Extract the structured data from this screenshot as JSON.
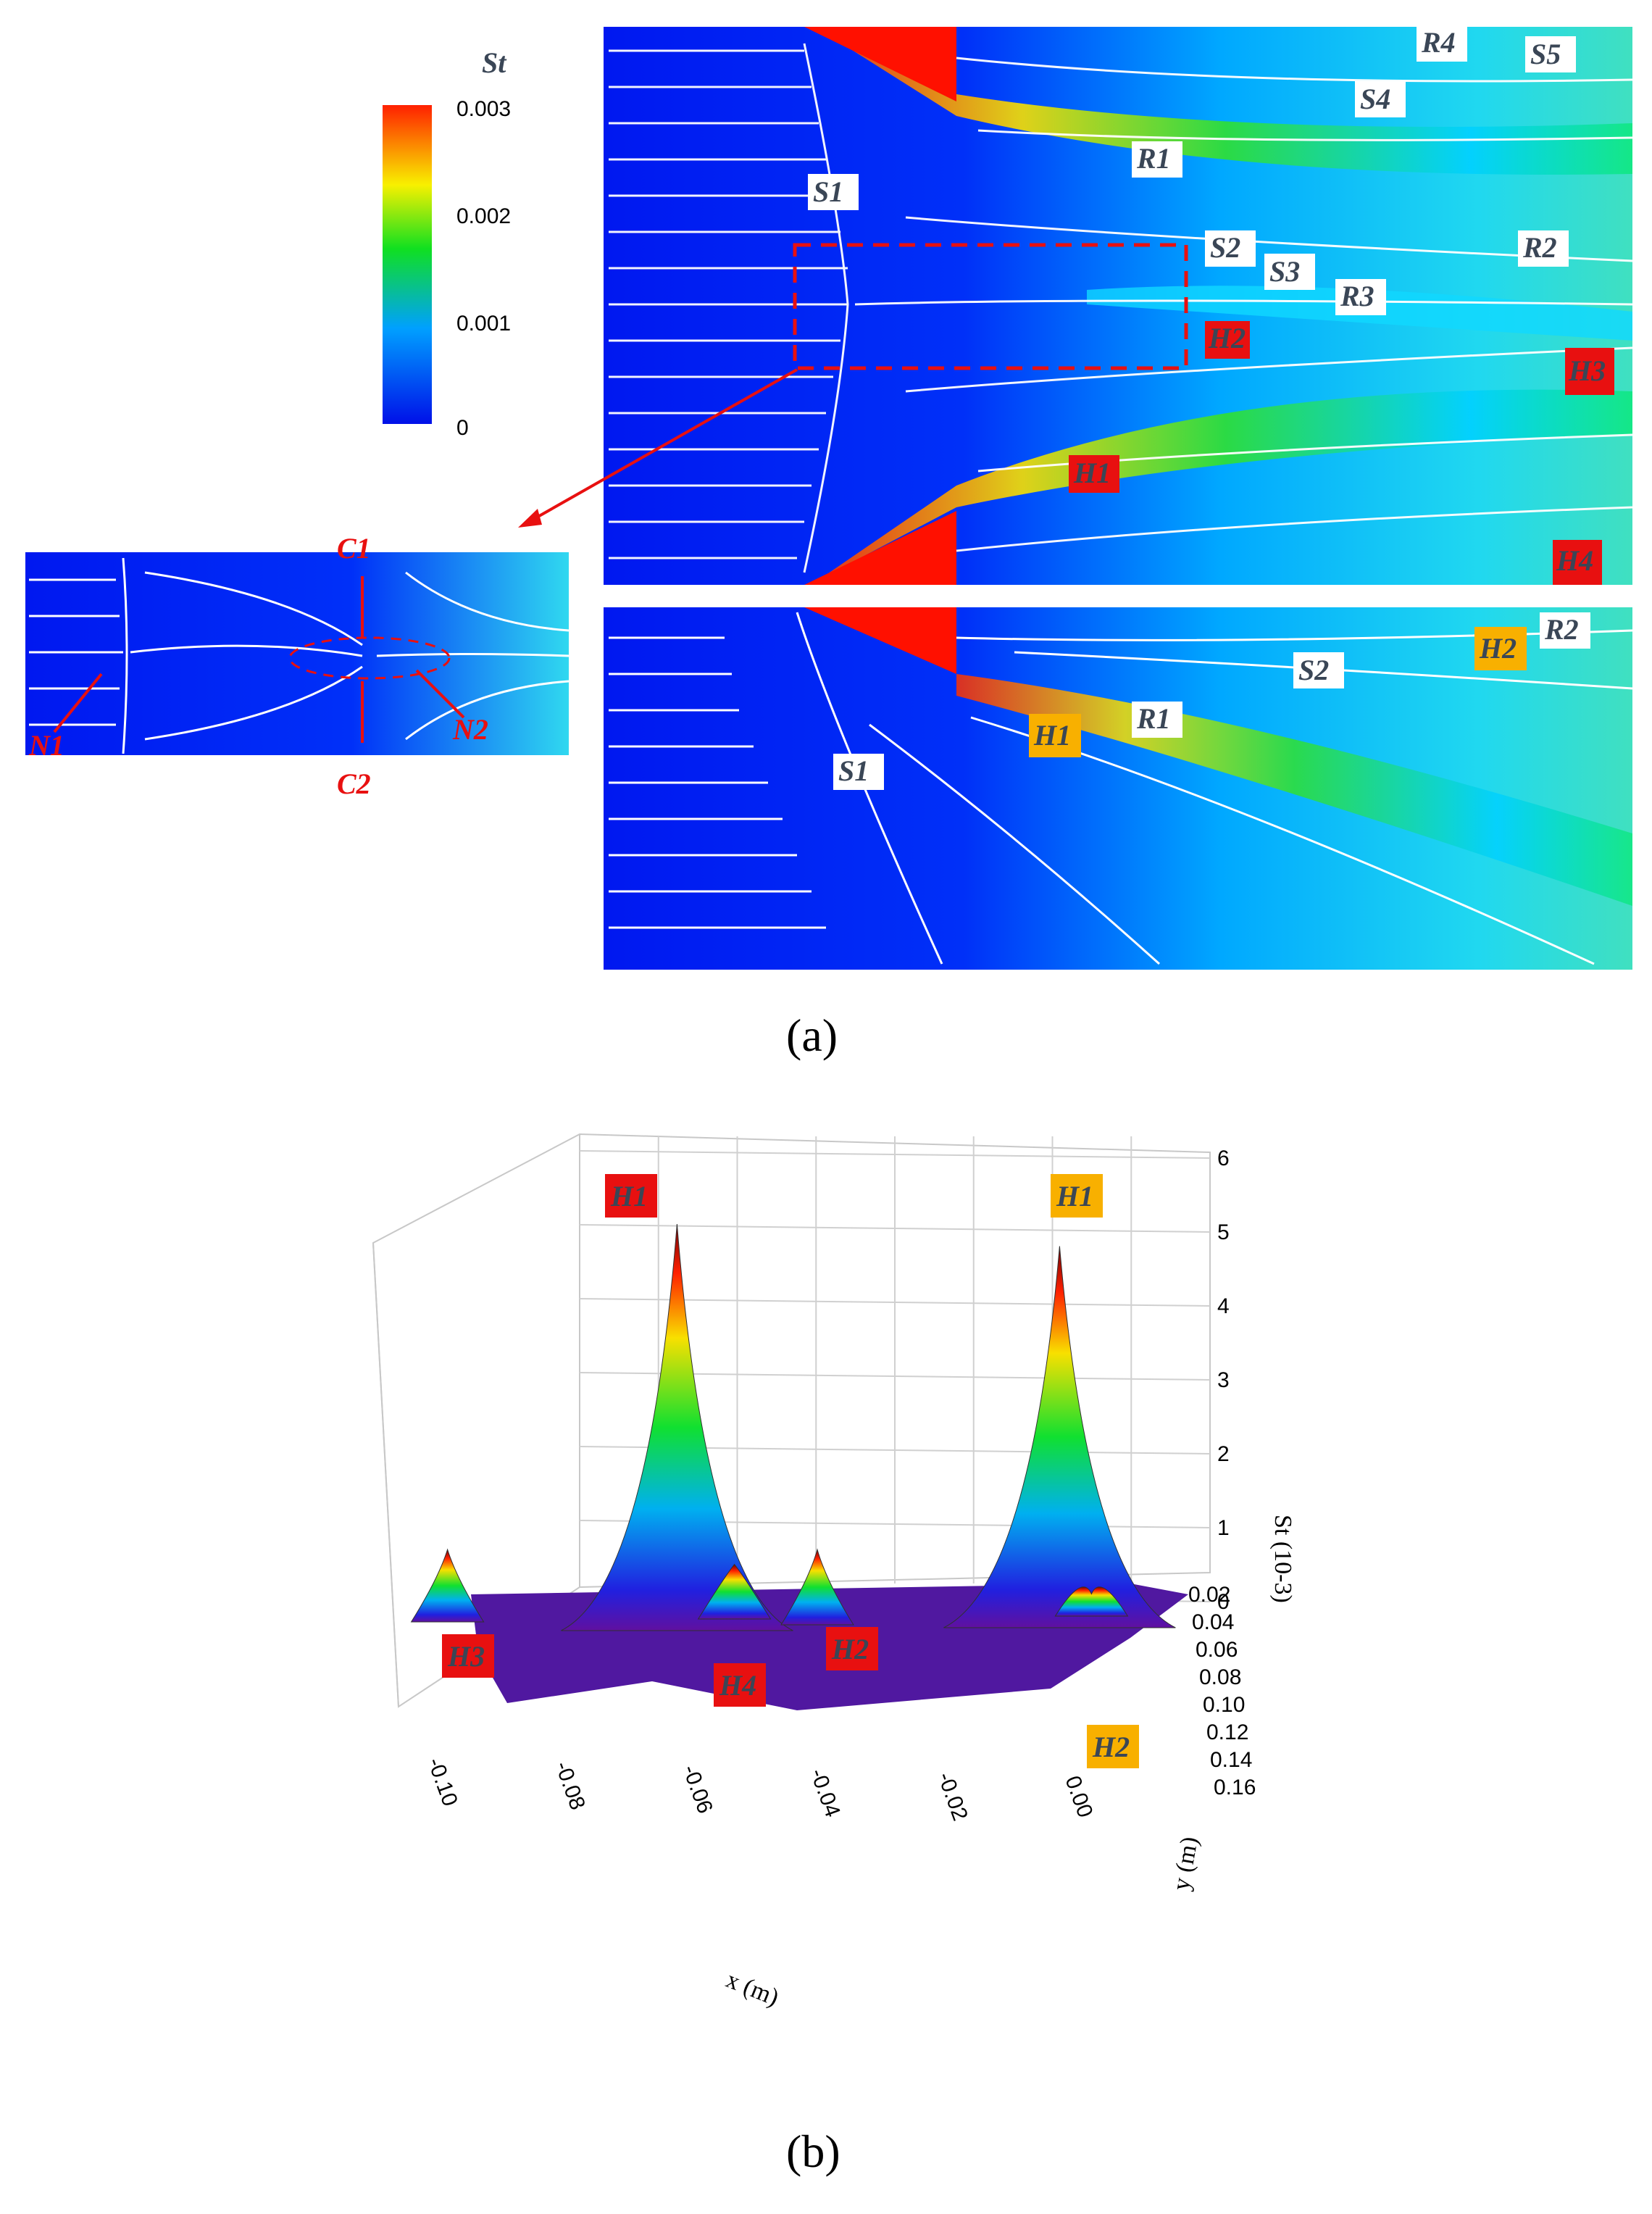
{
  "panel_a": {
    "label": "(a)",
    "colorbar": {
      "title": "St",
      "ticks": [
        "0.003",
        "0.002",
        "0.001",
        "0"
      ],
      "colors": [
        "#0010e8",
        "#00c8ff",
        "#10e020",
        "#f8f000",
        "#ff2000"
      ]
    },
    "top_labels": [
      "R4",
      "S5",
      "S4",
      "R1",
      "S1",
      "S2",
      "S3",
      "R3",
      "R2",
      "H1",
      "H2",
      "H3",
      "H4"
    ],
    "inset_labels": [
      "C1",
      "C2",
      "N1",
      "N2"
    ],
    "bottom_labels": [
      "H2",
      "R2",
      "S2",
      "H1",
      "R1",
      "S1"
    ]
  },
  "panel_b": {
    "label": "(b)",
    "chart_data": {
      "type": "surface",
      "zlabel": "St (10-3)",
      "xlabel": "x (m)",
      "ylabel": "y (m)",
      "z_ticks": [
        "0",
        "1",
        "2",
        "3",
        "4",
        "5",
        "6"
      ],
      "x_ticks": [
        "-0.10",
        "-0.08",
        "-0.06",
        "-0.04",
        "-0.02",
        "0.00"
      ],
      "y_ticks": [
        "0.02",
        "0.04",
        "0.06",
        "0.08",
        "0.10",
        "0.12",
        "0.14",
        "0.16"
      ],
      "zlim": [
        0,
        6
      ],
      "peaks": [
        {
          "label": "H1",
          "x": -0.062,
          "z": 5.5,
          "tag_color": "#e81010"
        },
        {
          "label": "H1",
          "x": -0.002,
          "z": 5.2,
          "tag_color": "#f8b000"
        },
        {
          "label": "H2",
          "x": -0.04,
          "z": 0.9,
          "tag_color": "#e81010"
        },
        {
          "label": "H3",
          "x": -0.098,
          "z": 0.9,
          "tag_color": "#e81010"
        },
        {
          "label": "H4",
          "x": -0.053,
          "z": 0.7,
          "tag_color": "#e81010"
        },
        {
          "label": "H2",
          "x": 0.003,
          "z": 0.3,
          "tag_color": "#f8b000"
        }
      ]
    }
  }
}
